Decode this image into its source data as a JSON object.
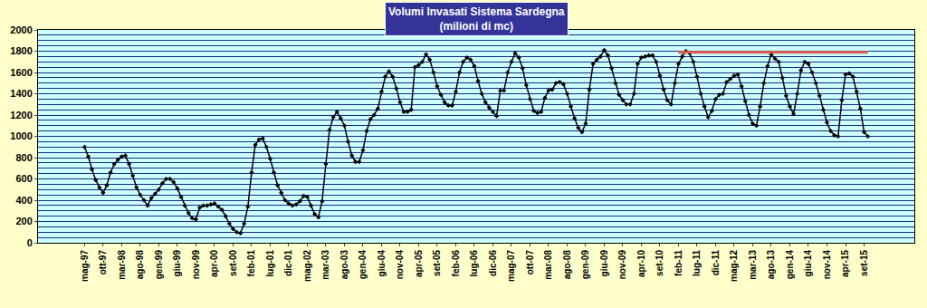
{
  "chart_data": {
    "type": "line",
    "title": "Volumi Invasati Sistema Sardegna",
    "subtitle": "(milioni di mc)",
    "color": "#000000",
    "marker": "diamond",
    "grid": true,
    "ylim": [
      0,
      2000
    ],
    "yticks": [
      0,
      200,
      400,
      600,
      800,
      1000,
      1200,
      1400,
      1600,
      1800,
      2000
    ],
    "categories": [
      "mag-97",
      null,
      null,
      null,
      null,
      "ott-97",
      null,
      null,
      null,
      null,
      "mar-98",
      null,
      null,
      null,
      null,
      "ago-98",
      null,
      null,
      null,
      null,
      "gen-99",
      null,
      null,
      null,
      null,
      "giu-99",
      null,
      null,
      null,
      null,
      "nov-99",
      null,
      null,
      null,
      null,
      "apr-00",
      null,
      null,
      null,
      null,
      "set-00",
      null,
      null,
      null,
      null,
      "feb-01",
      null,
      null,
      null,
      null,
      "lug-01",
      null,
      null,
      null,
      null,
      "dic-01",
      null,
      null,
      null,
      null,
      "mag-02",
      null,
      null,
      null,
      null,
      "mar-03",
      null,
      null,
      null,
      null,
      "ago-03",
      null,
      null,
      null,
      null,
      "gen-04",
      null,
      null,
      null,
      null,
      "giu-04",
      null,
      null,
      null,
      null,
      "nov-04",
      null,
      null,
      null,
      null,
      "apr-05",
      null,
      null,
      null,
      null,
      "set-05",
      null,
      null,
      null,
      null,
      "feb-06",
      null,
      null,
      null,
      null,
      "lug-06",
      null,
      null,
      null,
      null,
      "dic-06",
      null,
      null,
      null,
      null,
      "mag-07",
      null,
      null,
      null,
      null,
      "ott-07",
      null,
      null,
      null,
      null,
      "mar-08",
      null,
      null,
      null,
      null,
      "ago-08",
      null,
      null,
      null,
      null,
      "gen-09",
      null,
      null,
      null,
      null,
      "giu-09",
      null,
      null,
      null,
      null,
      "nov-09",
      null,
      null,
      null,
      null,
      "apr-10",
      null,
      null,
      null,
      null,
      "set-10",
      null,
      null,
      null,
      null,
      "feb-11",
      null,
      null,
      null,
      null,
      "lug-11",
      null,
      null,
      null,
      null,
      "dic-11",
      null,
      null,
      null,
      null,
      "mag-12",
      null,
      null,
      null,
      null,
      "mar-13",
      null,
      null,
      null,
      null,
      "ago-13",
      null,
      null,
      null,
      null,
      "gen-14",
      null,
      null,
      null,
      null,
      "giu-14",
      null,
      null,
      null,
      null,
      "nov-14",
      null,
      null,
      null,
      null,
      "apr-15",
      null,
      null,
      null,
      null,
      "set-15",
      null
    ],
    "values": [
      900,
      810,
      690,
      590,
      520,
      470,
      540,
      660,
      740,
      780,
      810,
      820,
      740,
      630,
      520,
      450,
      400,
      350,
      420,
      460,
      500,
      560,
      600,
      600,
      570,
      510,
      430,
      350,
      280,
      230,
      220,
      330,
      350,
      350,
      360,
      370,
      340,
      310,
      250,
      180,
      130,
      100,
      90,
      180,
      340,
      660,
      920,
      970,
      980,
      900,
      790,
      660,
      540,
      470,
      400,
      370,
      350,
      360,
      390,
      440,
      430,
      350,
      270,
      240,
      390,
      740,
      1060,
      1180,
      1230,
      1170,
      1100,
      950,
      820,
      760,
      760,
      870,
      1050,
      1160,
      1200,
      1260,
      1420,
      1560,
      1610,
      1560,
      1450,
      1320,
      1230,
      1230,
      1250,
      1650,
      1670,
      1700,
      1770,
      1720,
      1600,
      1470,
      1390,
      1320,
      1290,
      1290,
      1420,
      1600,
      1700,
      1740,
      1720,
      1660,
      1520,
      1400,
      1320,
      1270,
      1230,
      1190,
      1430,
      1430,
      1600,
      1700,
      1780,
      1740,
      1640,
      1480,
      1350,
      1240,
      1220,
      1230,
      1360,
      1430,
      1440,
      1500,
      1510,
      1490,
      1400,
      1280,
      1170,
      1080,
      1040,
      1120,
      1440,
      1680,
      1720,
      1750,
      1810,
      1760,
      1640,
      1500,
      1390,
      1340,
      1300,
      1300,
      1400,
      1680,
      1740,
      1750,
      1760,
      1760,
      1700,
      1570,
      1440,
      1340,
      1300,
      1500,
      1680,
      1750,
      1800,
      1780,
      1700,
      1560,
      1400,
      1280,
      1180,
      1240,
      1350,
      1390,
      1400,
      1510,
      1540,
      1570,
      1580,
      1470,
      1330,
      1200,
      1120,
      1100,
      1280,
      1500,
      1660,
      1770,
      1730,
      1700,
      1550,
      1380,
      1280,
      1210,
      1400,
      1620,
      1700,
      1680,
      1600,
      1500,
      1380,
      1250,
      1130,
      1050,
      1010,
      1000,
      1340,
      1580,
      1590,
      1560,
      1420,
      1260,
      1040,
      1000
    ],
    "hline": {
      "value": 1790,
      "from": "feb-11",
      "color": "#e0604f"
    }
  }
}
